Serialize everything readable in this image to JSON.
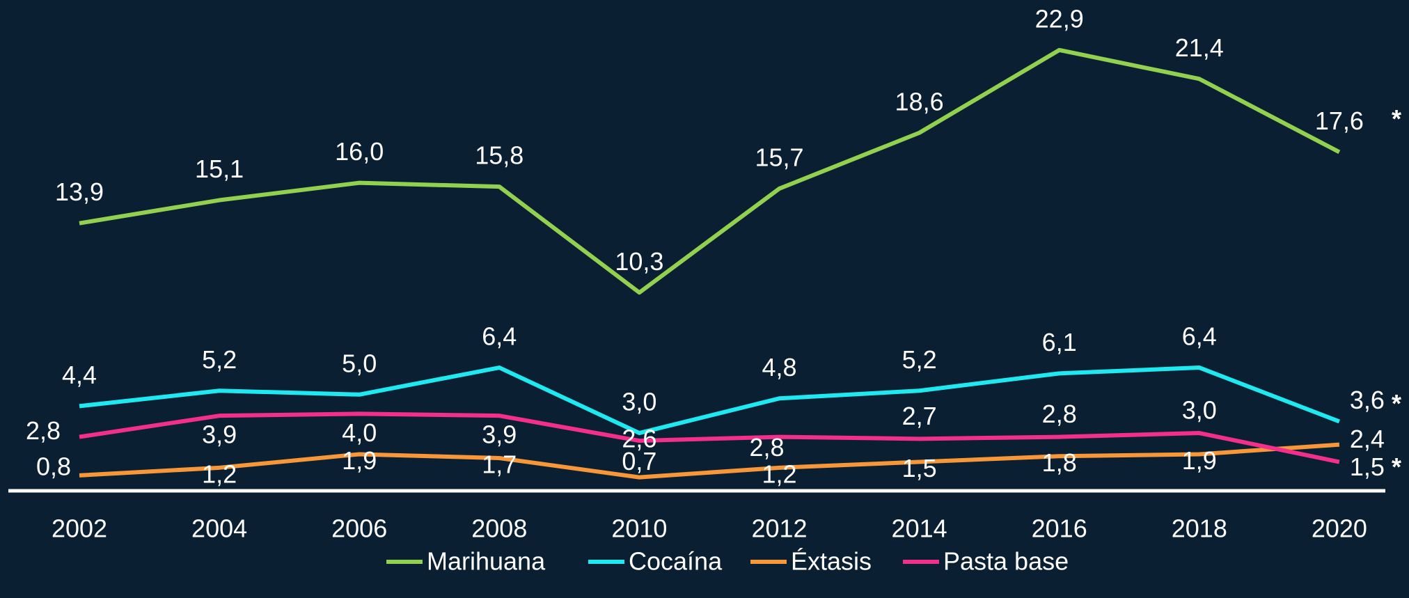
{
  "chart_data": {
    "type": "line",
    "categories": [
      "2002",
      "2004",
      "2006",
      "2008",
      "2010",
      "2012",
      "2014",
      "2016",
      "2018",
      "2020"
    ],
    "ylim": [
      0,
      25.5
    ],
    "series": [
      {
        "name": "Marihuana",
        "color": "#92d050",
        "annotation": "*",
        "values": [
          13.9,
          15.1,
          16.0,
          15.8,
          10.3,
          15.7,
          18.6,
          22.9,
          21.4,
          17.6
        ],
        "value_labels": [
          "13,9",
          "15,1",
          "16,0",
          "15,8",
          "10,3",
          "15,7",
          "18,6",
          "22,9",
          "21,4",
          "17,6"
        ]
      },
      {
        "name": "Cocaína",
        "color": "#1ee9f0",
        "annotation": "*",
        "values": [
          4.4,
          5.2,
          5.0,
          6.4,
          3.0,
          4.8,
          5.2,
          6.1,
          6.4,
          3.6
        ],
        "value_labels": [
          "4,4",
          "5,2",
          "5,0",
          "6,4",
          "3,0",
          "4,8",
          "5,2",
          "6,1",
          "6,4",
          "3,6"
        ]
      },
      {
        "name": "Éxtasis",
        "color": "#f7973a",
        "values": [
          0.8,
          1.2,
          1.9,
          1.7,
          0.7,
          1.2,
          1.5,
          1.8,
          1.9,
          2.4
        ],
        "value_labels": [
          "0,8",
          "1,2",
          "1,9",
          "1,7",
          "0,7",
          "1,2",
          "1,5",
          "1,8",
          "1,9",
          "2,4"
        ]
      },
      {
        "name": "Pasta base",
        "color": "#f2308c",
        "annotation": "*",
        "values": [
          2.8,
          3.9,
          4.0,
          3.9,
          2.6,
          2.8,
          2.7,
          2.8,
          3.0,
          1.5
        ],
        "value_labels": [
          "2,8",
          "3,9",
          "4,0",
          "3,9",
          "2,6",
          "2,8",
          "2,7",
          "2,8",
          "3,0",
          "1,5"
        ]
      }
    ]
  }
}
